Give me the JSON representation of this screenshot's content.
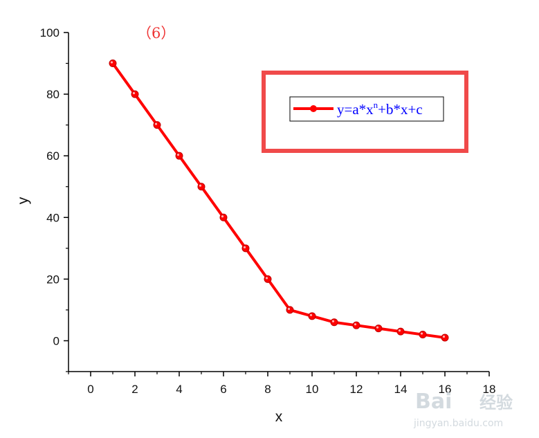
{
  "colors": {
    "series": "#ff0000",
    "legend_text": "#0000ff",
    "annotation": "#ee3333",
    "highlight_box": "#f04a4a",
    "axis": "#000000",
    "watermark": "#cfd6dc"
  },
  "chart_data": {
    "type": "line",
    "title": "",
    "annotation": "（6）",
    "xlabel": "x",
    "ylabel": "y",
    "xlim": [
      -1,
      18
    ],
    "ylim": [
      -10,
      100
    ],
    "xticks": [
      0,
      2,
      4,
      6,
      8,
      10,
      12,
      14,
      16,
      18
    ],
    "yticks": [
      0,
      20,
      40,
      60,
      80,
      100
    ],
    "grid": false,
    "legend_position": "top-right",
    "series": [
      {
        "name": "y=a*x^n+b*x+c",
        "marker": "circle",
        "x": [
          1,
          2,
          3,
          4,
          5,
          6,
          7,
          8,
          9,
          10,
          11,
          12,
          13,
          14,
          15,
          16
        ],
        "y": [
          90,
          80,
          70,
          60,
          50,
          40,
          30,
          20,
          10,
          8,
          6,
          5,
          4,
          3,
          2,
          1
        ]
      }
    ]
  },
  "legend": {
    "text_main": "y=a*x",
    "text_sup": "n",
    "text_tail": "+b*x+c"
  },
  "watermark": {
    "brand": "Bai",
    "brand_cn": "经验",
    "url": "jingyan.baidu.com"
  }
}
